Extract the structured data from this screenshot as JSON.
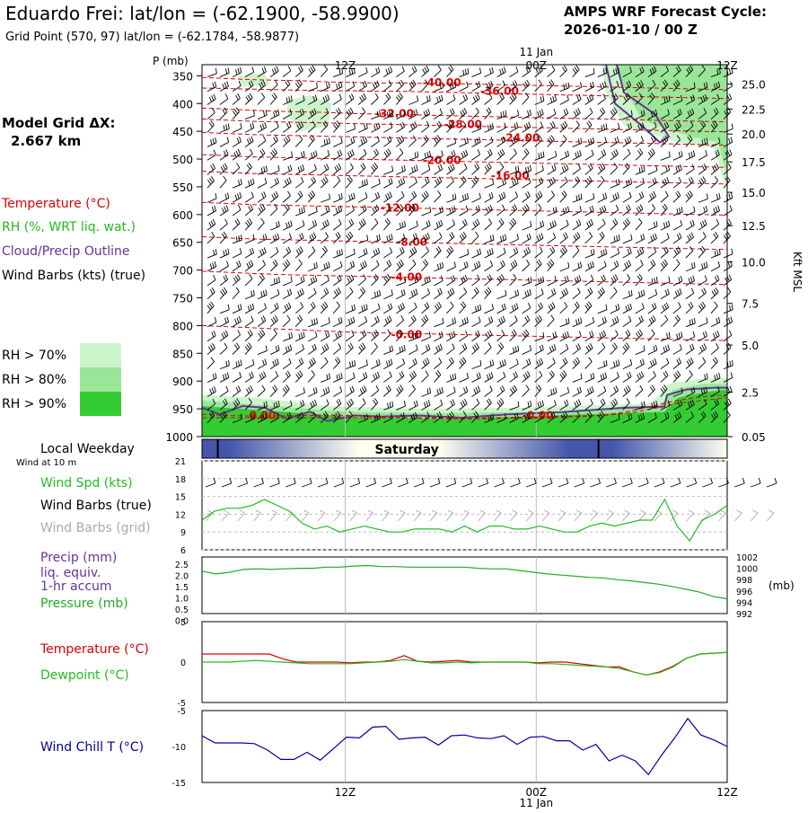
{
  "header": {
    "title": "Eduardo Frei:  lat/lon = (-62.1900, -58.9900)",
    "subtitle": "Grid Point (570, 97) lat/lon = (-62.1784, -58.9877)",
    "cycle_label": "AMPS WRF Forecast Cycle:",
    "cycle_value": "2026-01-10 / 00  Z"
  },
  "model_grid": {
    "label": "Model Grid ΔX:",
    "value": "2.667 km"
  },
  "legend_top": {
    "temperature": "Temperature (°C)",
    "rh": "RH (%, WRT liq. wat.)",
    "cloud": "Cloud/Precip Outline",
    "wind": "Wind Barbs (kts) (true)"
  },
  "rh_legend": [
    {
      "label": "RH > 70%",
      "color": "#ccf5cc"
    },
    {
      "label": "RH > 80%",
      "color": "#99e699"
    },
    {
      "label": "RH > 90%",
      "color": "#33cc33"
    }
  ],
  "colors": {
    "temperature": "#dd0000",
    "rh_green": "#22bb22",
    "cloud": "#663399",
    "wind": "#000000",
    "wind_grid": "#aaaaaa",
    "precip": "#663399",
    "pressure": "#22aa22",
    "windchill": "#000099",
    "dewpoint": "#22bb22",
    "day_bar_dark": "#4455aa",
    "day_bar_light": "#fffff0"
  },
  "time_axis": {
    "top_labels": [
      {
        "label": "12Z",
        "pos": 0.2727
      },
      {
        "label": "00Z",
        "pos": 0.6364
      },
      {
        "label": "12Z",
        "pos": 1.0
      }
    ],
    "date_label": "11 Jan",
    "date_pos": 0.6364
  },
  "sounding": {
    "ylabel": "P (mb)",
    "right_label": "Kft MSL",
    "pressure_ticks": [
      "350",
      "400",
      "450",
      "500",
      "550",
      "600",
      "650",
      "700",
      "750",
      "800",
      "850",
      "900",
      "950",
      "1000"
    ],
    "height_ticks": [
      {
        "label": "25.0",
        "p": 365
      },
      {
        "label": "22.5",
        "p": 410
      },
      {
        "label": "20.0",
        "p": 455
      },
      {
        "label": "17.5",
        "p": 505
      },
      {
        "label": "15.0",
        "p": 560
      },
      {
        "label": "12.5",
        "p": 620
      },
      {
        "label": "10.0",
        "p": 685
      },
      {
        "label": "7.5",
        "p": 760
      },
      {
        "label": "5.0",
        "p": 835
      },
      {
        "label": "2.5",
        "p": 920
      },
      {
        "label": "0.05",
        "p": 1000
      }
    ],
    "temp_contours": [
      {
        "label": "-40.00",
        "lx": 0.42,
        "p": 362,
        "ys": [
          353,
          355,
          357,
          358,
          359,
          361,
          362,
          363,
          363,
          364,
          364,
          365,
          366,
          367,
          368,
          369,
          370,
          371,
          372,
          373,
          374,
          375
        ]
      },
      {
        "label": "-36.00",
        "lx": 0.53,
        "p": 378,
        "ys": [
          372,
          373,
          374,
          375,
          376,
          377,
          377,
          378,
          378,
          379,
          380,
          381,
          382,
          383,
          384,
          385,
          386,
          387,
          388,
          389,
          390,
          391
        ]
      },
      {
        "label": "-32.00",
        "lx": 0.33,
        "p": 418,
        "ys": [
          408,
          410,
          412,
          414,
          415,
          416,
          418,
          419,
          420,
          421,
          422,
          423,
          424,
          425,
          426,
          427,
          428,
          429,
          430,
          431,
          432,
          433
        ]
      },
      {
        "label": "-28.00",
        "lx": 0.46,
        "p": 438,
        "ys": [
          428,
          430,
          432,
          433,
          434,
          435,
          436,
          437,
          438,
          439,
          440,
          441,
          442,
          443,
          444,
          445,
          446,
          447,
          448,
          449,
          450,
          451
        ]
      },
      {
        "label": "-24.00",
        "lx": 0.57,
        "p": 462,
        "ys": [
          452,
          454,
          456,
          457,
          458,
          459,
          460,
          461,
          462,
          463,
          464,
          465,
          466,
          467,
          468,
          469,
          470,
          471,
          472,
          473,
          474,
          475
        ]
      },
      {
        "label": "-20.00",
        "lx": 0.42,
        "p": 502,
        "ys": [
          492,
          494,
          496,
          497,
          498,
          499,
          500,
          501,
          502,
          503,
          504,
          505,
          506,
          507,
          508,
          509,
          510,
          511,
          512,
          513,
          514,
          515
        ]
      },
      {
        "label": "-16.00",
        "lx": 0.55,
        "p": 530,
        "ys": [
          522,
          524,
          526,
          527,
          528,
          529,
          530,
          531,
          532,
          533,
          534,
          535,
          536,
          537,
          538,
          539,
          540,
          541,
          542,
          543,
          544,
          545
        ]
      },
      {
        "label": "-12.00",
        "lx": 0.34,
        "p": 588,
        "ys": [
          578,
          580,
          582,
          583,
          584,
          585,
          586,
          587,
          588,
          589,
          590,
          591,
          592,
          593,
          594,
          595,
          596,
          597,
          598,
          599,
          600,
          601
        ]
      },
      {
        "label": "-8.00",
        "lx": 0.37,
        "p": 650,
        "ys": [
          640,
          642,
          644,
          645,
          646,
          647,
          648,
          649,
          650,
          651,
          652,
          653,
          654,
          655,
          656,
          657,
          658,
          659,
          660,
          661,
          662,
          663
        ]
      },
      {
        "label": "-4.00",
        "lx": 0.36,
        "p": 713,
        "ys": [
          702,
          704,
          706,
          708,
          709,
          710,
          711,
          712,
          713,
          714,
          715,
          716,
          717,
          718,
          719,
          720,
          721,
          722,
          723,
          724,
          725,
          726
        ]
      },
      {
        "label": "-0.00",
        "lx": 0.36,
        "p": 816,
        "ys": [
          800,
          802,
          804,
          806,
          808,
          810,
          812,
          813,
          814,
          815,
          816,
          817,
          818,
          819,
          820,
          821,
          822,
          823,
          824,
          825,
          826,
          827
        ]
      },
      {
        "label": "0.00",
        "lx": 0.09,
        "p": 962,
        "ys": [
          960,
          962,
          963,
          963,
          962,
          961,
          962,
          964,
          966,
          967,
          968,
          968,
          967,
          966,
          965,
          964,
          962,
          958,
          950,
          940,
          935,
          930
        ]
      },
      {
        "label": "-0.00",
        "lx": 0.61,
        "p": 962,
        "ys": [
          966,
          966,
          966,
          966,
          966,
          966,
          966,
          966,
          966,
          966,
          966,
          966,
          966,
          965,
          964,
          963,
          962,
          955,
          945,
          935,
          928,
          925
        ]
      }
    ]
  },
  "day_bar": {
    "label": "Saturday",
    "header": "Local Weekday",
    "boundaries": [
      0.03,
      0.755
    ]
  },
  "panel_wind": {
    "sub_label": "Wind at 10 m",
    "labels": [
      "Wind Spd (kts)",
      "Wind Barbs (true)",
      "Wind Barbs (grid)"
    ],
    "yticks": [
      "21",
      "18",
      "15",
      "12",
      "9",
      "6"
    ],
    "ymin": 6,
    "ymax": 21,
    "speed": [
      11,
      12.5,
      13,
      13,
      13.5,
      14.5,
      13.5,
      12.5,
      10.5,
      9.5,
      10,
      9,
      9.5,
      10,
      9.5,
      9,
      9,
      9.5,
      9.5,
      9.5,
      9,
      10,
      9,
      10,
      10,
      9.5,
      9.5,
      10,
      9.5,
      9,
      9,
      10,
      10.5,
      10,
      10.5,
      11,
      11,
      14.5,
      10,
      7.5,
      11,
      12,
      13.5
    ]
  },
  "panel_precip": {
    "labels": [
      "Precip (mm)",
      "liq. equiv.",
      "1-hr accum",
      "Pressure (mb)"
    ],
    "left_ticks": [
      "2.5",
      "2.0",
      "1.5",
      "1.0",
      "0.5",
      "0.0"
    ],
    "right_ticks": [
      "1002",
      "1000",
      "998",
      "996",
      "994",
      "992"
    ],
    "right_unit": "(mb)",
    "pmin": 992,
    "pmax": 1002,
    "pressure": [
      999.5,
      999,
      999.3,
      999.8,
      999.9,
      999.8,
      999.9,
      1000,
      1000,
      1000.2,
      1000.2,
      1000.4,
      1000.5,
      1000.3,
      1000.3,
      1000.2,
      1000.2,
      1000.2,
      1000.2,
      1000.2,
      1000,
      999.9,
      999.9,
      999.6,
      999.3,
      999,
      998.8,
      998.6,
      998.4,
      998.3,
      998,
      997.8,
      997.5,
      997.2,
      996.8,
      996.3,
      995.8,
      995,
      994.6
    ]
  },
  "panel_temp": {
    "labels": [
      "Temperature (°C)",
      "Dewpoint (°C)"
    ],
    "yticks": [
      "5",
      "0",
      "-5"
    ],
    "ymin": -5,
    "ymax": 5,
    "temperature": [
      1,
      1,
      1,
      1,
      1,
      1,
      0.4,
      0,
      0,
      0,
      0,
      -0.1,
      0,
      0,
      0.2,
      0.8,
      0.1,
      0,
      0.1,
      0.2,
      0,
      0,
      0,
      0,
      0,
      -0.1,
      0,
      0,
      -0.2,
      -0.4,
      -0.6,
      -0.6,
      -1.2,
      -1.6,
      -1.2,
      -0.5,
      0.5,
      1,
      1.1,
      1.2
    ],
    "dewpoint": [
      0,
      0,
      0,
      0.1,
      0.2,
      0.1,
      0,
      -0.1,
      -0.2,
      -0.2,
      -0.2,
      -0.2,
      -0.1,
      0,
      0.1,
      0.3,
      0.1,
      -0.1,
      -0.1,
      0,
      -0.1,
      0,
      0,
      0,
      0,
      -0.2,
      -0.2,
      -0.3,
      -0.4,
      -0.5,
      -0.6,
      -0.8,
      -1.2,
      -1.6,
      -1.3,
      -0.6,
      0.5,
      1,
      1.1,
      1.2
    ]
  },
  "panel_windchill": {
    "label": "Wind Chill T (°C)",
    "yticks": [
      "-5",
      "-10",
      "-15"
    ],
    "ymin": -15,
    "ymax": -5,
    "values": [
      -8.5,
      -9.5,
      -9.5,
      -9.5,
      -9.6,
      -10.5,
      -11.8,
      -11.8,
      -10.8,
      -11.9,
      -10.3,
      -8.7,
      -8.8,
      -7.3,
      -7.2,
      -9,
      -8.8,
      -8.7,
      -9.8,
      -8.5,
      -8.4,
      -8.8,
      -8.9,
      -8.5,
      -9.7,
      -8.7,
      -8.6,
      -9.2,
      -9.2,
      -10.5,
      -9.7,
      -12,
      -11.2,
      -12,
      -13.9,
      -11.2,
      -8.8,
      -6.1,
      -8.4,
      -9.1,
      -10
    ]
  }
}
